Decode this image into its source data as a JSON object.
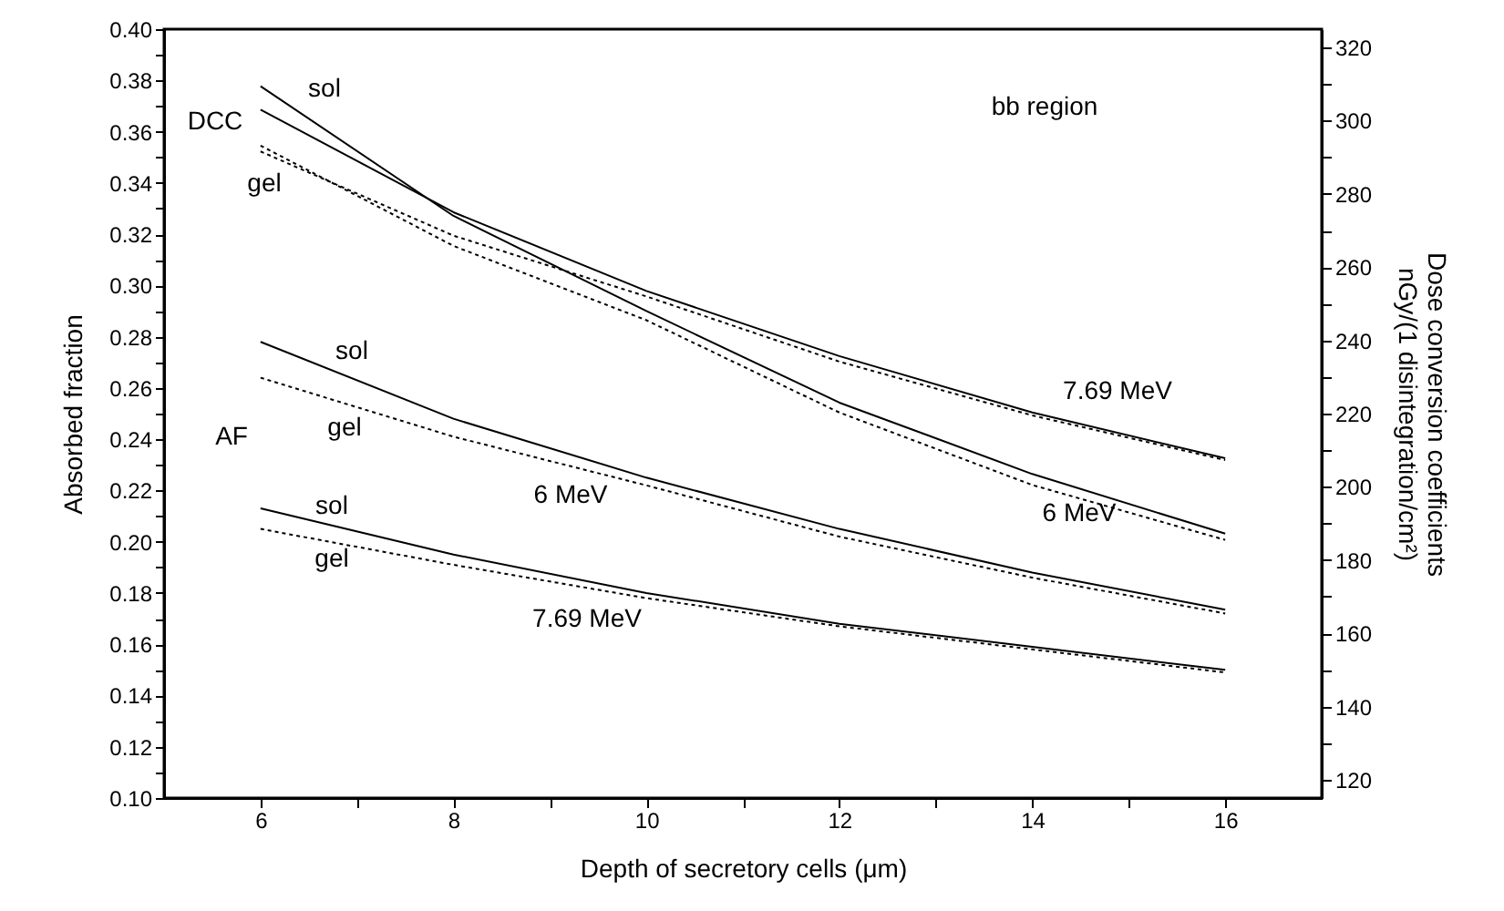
{
  "chart_data": {
    "type": "line",
    "xlabel": "Depth of secretory cells (μm)",
    "ylabel": "Absorbed fraction",
    "y2label": "Dose conversion coefficients\nnGy/(1 disintegration/cm²)",
    "x": [
      6,
      8,
      10,
      12,
      14,
      16
    ],
    "series": [
      {
        "color": "#000000",
        "line_style": "solid",
        "values": [
          0.278,
          0.248,
          0.225,
          0.205,
          0.188,
          0.1735
        ]
      },
      {
        "color": "#000000",
        "line_style": "dotted",
        "values": [
          0.264,
          0.241,
          0.222,
          0.202,
          0.186,
          0.172
        ]
      },
      {
        "color": "#000000",
        "line_style": "solid",
        "values": [
          0.213,
          0.195,
          0.18,
          0.168,
          0.159,
          0.15
        ]
      },
      {
        "color": "#000000",
        "line_style": "dotted",
        "values": [
          0.205,
          0.191,
          0.178,
          0.167,
          0.158,
          0.149
        ]
      },
      {
        "color": "#000000",
        "line_style": "solid",
        "axis": "y2",
        "values": [
          309.4,
          274.0,
          248.0,
          223.0,
          203.5,
          187.2
        ]
      },
      {
        "color": "#000000",
        "line_style": "dotted",
        "axis": "y2",
        "values": [
          293.2,
          265.8,
          245.5,
          220.3,
          200.5,
          185.5
        ]
      },
      {
        "color": "#000000",
        "line_style": "solid",
        "axis": "y2",
        "values": [
          303.0,
          275.0,
          253.5,
          235.7,
          220.3,
          207.8
        ]
      },
      {
        "color": "#000000",
        "line_style": "dotted",
        "axis": "y2",
        "values": [
          291.6,
          268.6,
          252.0,
          234.2,
          219.5,
          207.3
        ]
      }
    ],
    "xlim": [
      5,
      17
    ],
    "xticks": [
      6,
      {
        "value": 7,
        "label": null
      },
      8,
      {
        "value": 9,
        "label": null
      },
      10,
      {
        "value": 11,
        "label": null
      },
      12,
      {
        "value": 13,
        "label": null
      },
      14,
      {
        "value": 15,
        "label": null
      },
      16
    ],
    "ylim": [
      0.1,
      0.4
    ],
    "yticks": [
      {
        "value": 0.1,
        "label": "0.10"
      },
      {
        "value": 0.11,
        "label": null
      },
      {
        "value": 0.12,
        "label": "0.12"
      },
      {
        "value": 0.13,
        "label": null
      },
      {
        "value": 0.14,
        "label": "0.14"
      },
      {
        "value": 0.15,
        "label": null
      },
      {
        "value": 0.16,
        "label": "0.16"
      },
      {
        "value": 0.17,
        "label": null
      },
      {
        "value": 0.18,
        "label": "0.18"
      },
      {
        "value": 0.19,
        "label": null
      },
      {
        "value": 0.2,
        "label": "0.20"
      },
      {
        "value": 0.21,
        "label": null
      },
      {
        "value": 0.22,
        "label": "0.22"
      },
      {
        "value": 0.23,
        "label": null
      },
      {
        "value": 0.24,
        "label": "0.24"
      },
      {
        "value": 0.25,
        "label": null
      },
      {
        "value": 0.26,
        "label": "0.26"
      },
      {
        "value": 0.27,
        "label": null
      },
      {
        "value": 0.28,
        "label": "0.28"
      },
      {
        "value": 0.29,
        "label": null
      },
      {
        "value": 0.3,
        "label": "0.30"
      },
      {
        "value": 0.31,
        "label": null
      },
      {
        "value": 0.32,
        "label": "0.32"
      },
      {
        "value": 0.33,
        "label": null
      },
      {
        "value": 0.34,
        "label": "0.34"
      },
      {
        "value": 0.35,
        "label": null
      },
      {
        "value": 0.36,
        "label": "0.36"
      },
      {
        "value": 0.37,
        "label": null
      },
      {
        "value": 0.38,
        "label": "0.38"
      },
      {
        "value": 0.39,
        "label": null
      },
      {
        "value": 0.4,
        "label": "0.40"
      }
    ],
    "y2lim": [
      115,
      325
    ],
    "y2ticks": [
      120,
      {
        "value": 130,
        "label": null
      },
      140,
      {
        "value": 150,
        "label": null
      },
      160,
      {
        "value": 170,
        "label": null
      },
      180,
      {
        "value": 190,
        "label": null
      },
      200,
      {
        "value": 210,
        "label": null
      },
      220,
      {
        "value": 230,
        "label": null
      },
      240,
      {
        "value": 250,
        "label": null
      },
      260,
      {
        "value": 270,
        "label": null
      },
      280,
      {
        "value": 290,
        "label": null
      },
      300,
      {
        "value": 310,
        "label": null
      },
      320
    ],
    "grid": false,
    "legend": false,
    "marker": "none",
    "annotations": [
      "bb region",
      "sol",
      "DCC",
      "gel",
      "sol",
      "AF",
      "gel",
      "6 MeV",
      "sol",
      "gel",
      "7.69 MeV",
      "7.69 MeV",
      "6 MeV"
    ]
  }
}
